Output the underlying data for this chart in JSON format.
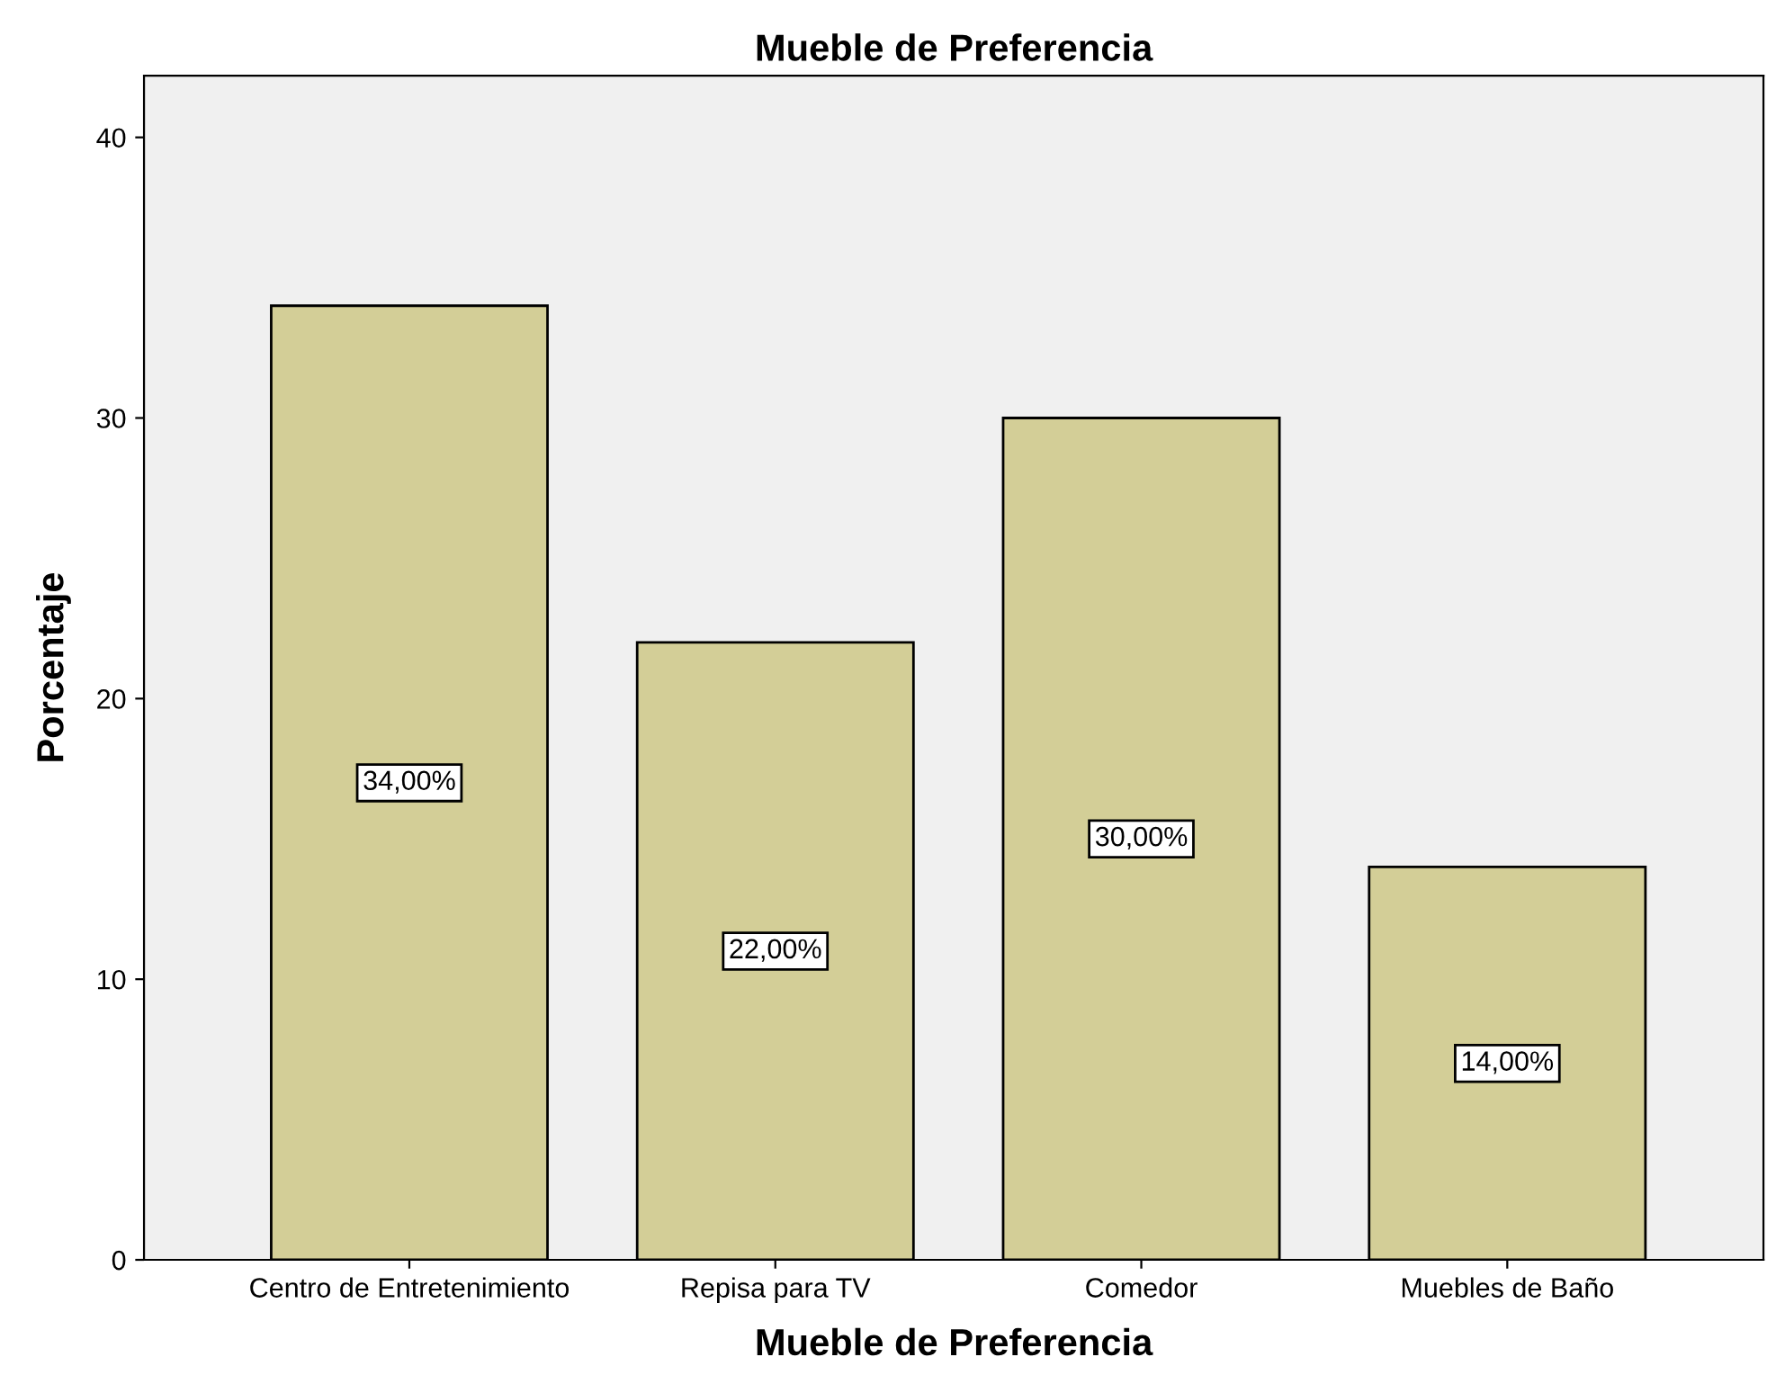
{
  "chart_data": {
    "type": "bar",
    "title": "Mueble de Preferencia",
    "xlabel": "Mueble de Preferencia",
    "ylabel": "Porcentaje",
    "categories": [
      "Centro de Entretenimiento",
      "Repisa para TV",
      "Comedor",
      "Muebles de Baño"
    ],
    "values": [
      34,
      22,
      30,
      14
    ],
    "color": "#d3ce97",
    "value_labels": [
      "34,00%",
      "22,00%",
      "30,00%",
      "14,00%"
    ],
    "ylim": [
      0,
      42.2
    ],
    "yticks": [
      0,
      10,
      20,
      30,
      40
    ],
    "grid": false,
    "legend": false
  }
}
